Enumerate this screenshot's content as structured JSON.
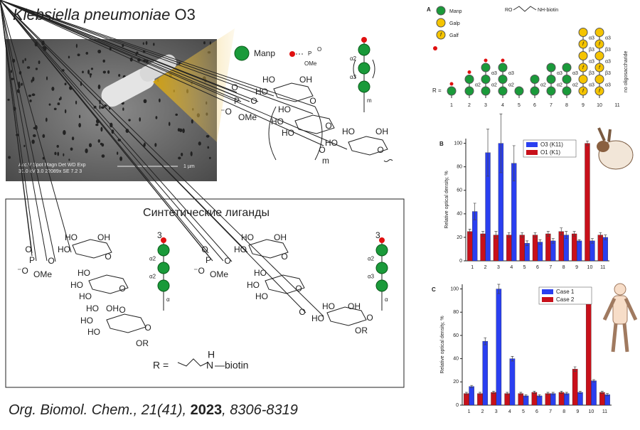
{
  "title": {
    "species": "Klebsiella pneumoniae",
    "serotype": "O3"
  },
  "micrograph": {
    "row1": "Acc.V  Spot Magn   Det  WD  Exp",
    "row2": "30.0 kV 3.0  22089x  SE   7.2   3",
    "scale": "1 µm"
  },
  "legend": {
    "manp": "Manp",
    "p": "P",
    "o_minus": "O",
    "ome": "OMe",
    "chain": [
      "α2",
      "α3",
      "m"
    ]
  },
  "structure_top": {
    "labels": [
      "HO",
      "OH",
      "HO",
      "O",
      "O",
      "P",
      "O",
      "⁻O",
      "OMe",
      "HO",
      "HO",
      "HO",
      "O",
      "O",
      "HO",
      "OH",
      "HO",
      "O",
      "m"
    ]
  },
  "ligands": {
    "title": "Синтетические лиганды",
    "left": {
      "labels": [
        "HO",
        "OH",
        "HO",
        "O",
        "O",
        "P",
        "O",
        "⁻O",
        "OMe",
        "HO",
        "HO",
        "HO",
        "O",
        "O",
        "HO",
        "OH",
        "HO",
        "HO",
        "O",
        "OR"
      ],
      "chain": [
        "3",
        "α2",
        "α2",
        "α"
      ]
    },
    "right": {
      "labels": [
        "HO",
        "OH",
        "HO",
        "O",
        "O",
        "P",
        "O",
        "⁻O",
        "OMe",
        "HO",
        "HO",
        "HO",
        "O",
        "O",
        "HO",
        "OH",
        "HO",
        "O",
        "OR"
      ],
      "chain": [
        "3",
        "α2",
        "α3",
        "α"
      ]
    },
    "r_def": {
      "r": "R =",
      "h": "H",
      "n": "N",
      "biotin": "—biotin"
    }
  },
  "citation": {
    "journal": "Org. Biomol. Chem., 21(41), ",
    "year": "2023",
    "pages": ", 8306-8319"
  },
  "panel_a": {
    "label": "A",
    "legend": [
      "Manp",
      "Galp",
      "Galf"
    ],
    "linker": [
      "RO",
      "NH-biotin"
    ],
    "r": "R =",
    "f": "f",
    "numbers": [
      "1",
      "2",
      "3",
      "4",
      "5",
      "6",
      "7",
      "8",
      "9",
      "10",
      "11"
    ],
    "linkages": [
      [],
      [
        "α2"
      ],
      [
        "α2",
        "α3"
      ],
      [
        "α2",
        "α3"
      ],
      [],
      [
        "α2"
      ],
      [
        "α2",
        "α3"
      ],
      [
        "α2",
        "α3"
      ],
      [
        "α3",
        "β3",
        "α3",
        "β3",
        "α3"
      ],
      [
        "α3",
        "β3",
        "α3",
        "β3",
        "α3"
      ],
      []
    ],
    "none": "no oligosaccharide"
  },
  "chart_data": [
    {
      "type": "bar",
      "panel": "B",
      "ylabel": "Relative optical density, %",
      "categories": [
        "1",
        "2",
        "3",
        "4",
        "5",
        "6",
        "7",
        "8",
        "9",
        "10",
        "11"
      ],
      "ylim": [
        0,
        104
      ],
      "yticks": [
        0,
        20,
        40,
        60,
        80,
        100
      ],
      "series": [
        {
          "name": "O3 (K11)",
          "color": "#2a3ff0",
          "values": [
            42,
            92,
            100,
            83,
            15,
            16,
            17,
            22,
            17,
            17,
            20
          ],
          "errors": [
            7,
            20,
            25,
            15,
            2,
            2,
            2,
            3,
            1,
            2,
            2
          ]
        },
        {
          "name": "O1 (K1)",
          "color": "#c8101a",
          "values": [
            25,
            23,
            22,
            22,
            22,
            22,
            23,
            25,
            23,
            100,
            22
          ],
          "errors": [
            2,
            2,
            3,
            2,
            2,
            2,
            2,
            3,
            2,
            2,
            2
          ]
        }
      ]
    },
    {
      "type": "bar",
      "panel": "C",
      "ylabel": "Relative optical density, %",
      "categories": [
        "1",
        "2",
        "3",
        "4",
        "5",
        "6",
        "7",
        "8",
        "9",
        "10",
        "11"
      ],
      "ylim": [
        0,
        104
      ],
      "yticks": [
        0,
        20,
        40,
        60,
        80,
        100
      ],
      "series": [
        {
          "name": "Case 1",
          "color": "#2a3ff0",
          "values": [
            16,
            55,
            100,
            40,
            8,
            8,
            10,
            10,
            11,
            21,
            9
          ],
          "errors": [
            1,
            3,
            4,
            2,
            1,
            1,
            1,
            1,
            1,
            1,
            1
          ]
        },
        {
          "name": "Case 2",
          "color": "#c8101a",
          "values": [
            10,
            10,
            11,
            10,
            10,
            11,
            10,
            11,
            31,
            100,
            11
          ],
          "errors": [
            1,
            1,
            1,
            1,
            1,
            1,
            1,
            1,
            2,
            1,
            1
          ]
        }
      ]
    }
  ]
}
